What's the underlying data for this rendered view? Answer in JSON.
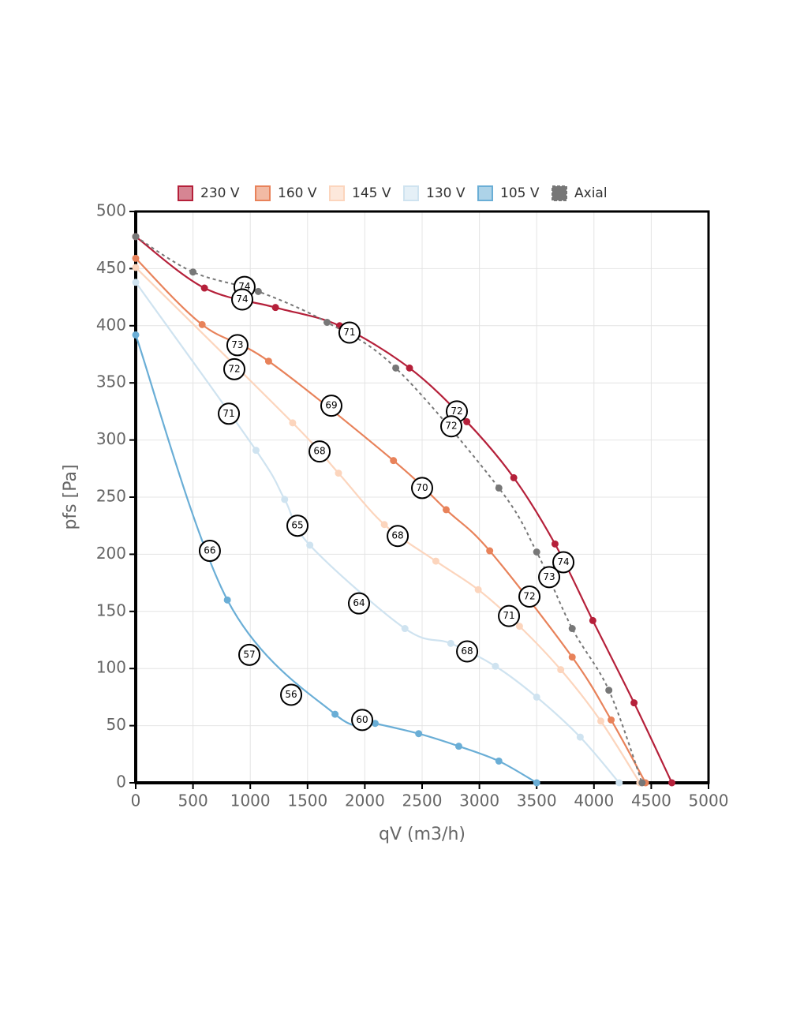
{
  "chart_data": {
    "type": "line",
    "x_label": "qV (m3/h)",
    "y_label": "pfs [Pa]",
    "xlim": [
      0,
      5000
    ],
    "xticks": [
      0,
      500,
      1000,
      1500,
      2000,
      2500,
      3000,
      3500,
      4000,
      4500,
      5000
    ],
    "ylim": [
      0,
      500
    ],
    "yticks": [
      0,
      50,
      100,
      150,
      200,
      250,
      300,
      350,
      400,
      450,
      500
    ],
    "grid": true,
    "legend": "top",
    "series": [
      {
        "name": "230 V",
        "color": "#b5203a",
        "x": [
          0,
          600,
          1220,
          1780,
          2390,
          2890,
          3300,
          3660,
          3990,
          4350,
          4680
        ],
        "values": [
          478,
          433,
          416,
          400,
          363,
          316,
          267,
          209,
          142,
          70,
          0
        ]
      },
      {
        "name": "160 V",
        "color": "#e8825a",
        "x": [
          0,
          580,
          1160,
          2250,
          2710,
          3090,
          3810,
          4150,
          4450
        ],
        "values": [
          459,
          401,
          369,
          282,
          239,
          203,
          110,
          55,
          0
        ]
      },
      {
        "name": "145 V",
        "color": "#fcd5bd",
        "x": [
          0,
          1370,
          1770,
          2170,
          2620,
          2990,
          3350,
          3710,
          4060,
          4400
        ],
        "values": [
          451,
          315,
          271,
          226,
          194,
          169,
          137,
          99,
          54,
          0
        ]
      },
      {
        "name": "130 V",
        "color": "#cfe3f0",
        "x": [
          0,
          1050,
          1300,
          1520,
          2350,
          2750,
          3140,
          3500,
          3880,
          4220
        ],
        "values": [
          438,
          291,
          248,
          208,
          135,
          122,
          102,
          75,
          40,
          0
        ]
      },
      {
        "name": "105 V",
        "color": "#6aaed6",
        "x": [
          0,
          800,
          1740,
          2090,
          2470,
          2820,
          3170,
          3500
        ],
        "values": [
          392,
          160,
          60,
          52,
          43,
          32,
          19,
          0
        ]
      },
      {
        "name": "Axial",
        "color": "#777777",
        "dashed": true,
        "x": [
          0,
          500,
          1070,
          1670,
          2270,
          3170,
          3500,
          3810,
          4130,
          4420
        ],
        "values": [
          478,
          447,
          430,
          403,
          363,
          258,
          202,
          135,
          81,
          0
        ]
      }
    ],
    "annotations": [
      {
        "x": 950,
        "y": 434,
        "label": 74
      },
      {
        "x": 930,
        "y": 423,
        "label": 74
      },
      {
        "x": 1866,
        "y": 394,
        "label": 71
      },
      {
        "x": 888,
        "y": 383,
        "label": 73
      },
      {
        "x": 861,
        "y": 362,
        "label": 72
      },
      {
        "x": 813,
        "y": 323,
        "label": 71
      },
      {
        "x": 1708,
        "y": 330,
        "label": 69
      },
      {
        "x": 2803,
        "y": 325,
        "label": 72
      },
      {
        "x": 2755,
        "y": 312,
        "label": 72
      },
      {
        "x": 1605,
        "y": 290,
        "label": 68
      },
      {
        "x": 2500,
        "y": 258,
        "label": 70
      },
      {
        "x": 1412,
        "y": 225,
        "label": 65
      },
      {
        "x": 647,
        "y": 203,
        "label": 66
      },
      {
        "x": 2287,
        "y": 216,
        "label": 68
      },
      {
        "x": 3733,
        "y": 193,
        "label": 74
      },
      {
        "x": 3609,
        "y": 180,
        "label": 73
      },
      {
        "x": 3437,
        "y": 163,
        "label": 72
      },
      {
        "x": 3258,
        "y": 146,
        "label": 71
      },
      {
        "x": 1949,
        "y": 157,
        "label": 64
      },
      {
        "x": 2893,
        "y": 115,
        "label": 68
      },
      {
        "x": 992,
        "y": 112,
        "label": 57
      },
      {
        "x": 1357,
        "y": 77,
        "label": 56
      },
      {
        "x": 1977,
        "y": 55,
        "label": 60
      }
    ]
  }
}
